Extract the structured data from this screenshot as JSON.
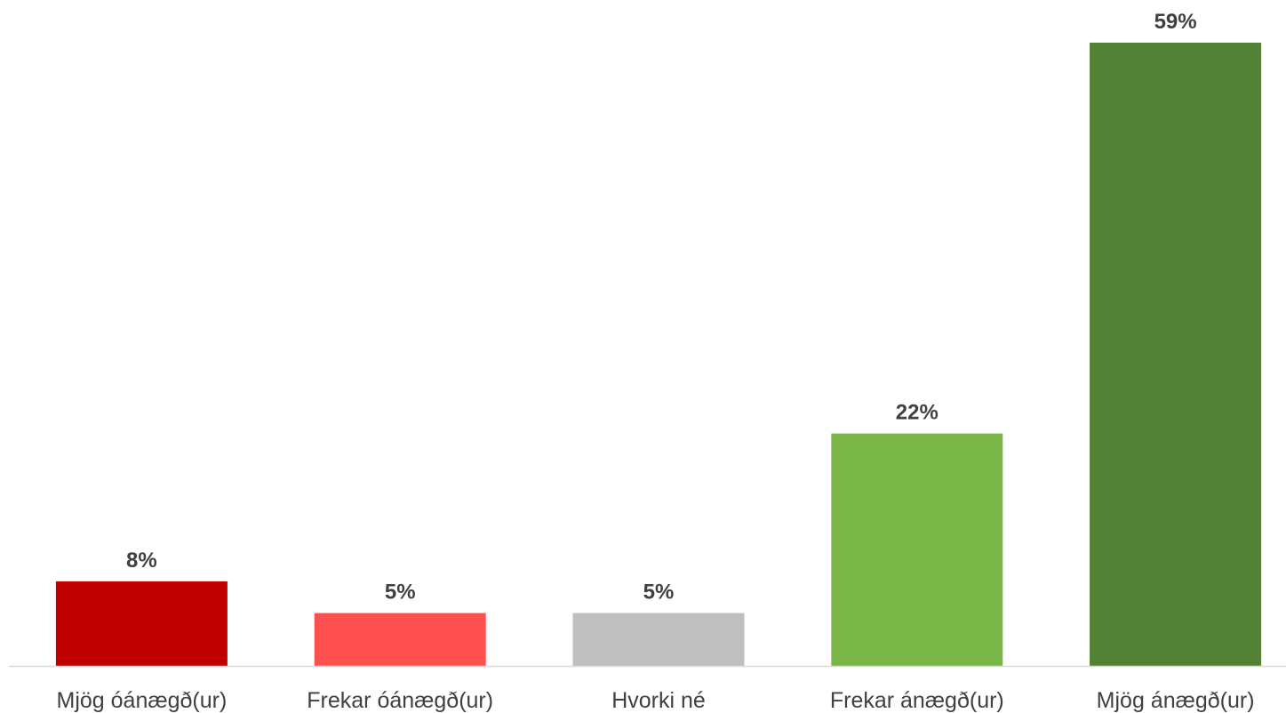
{
  "chart_data": {
    "type": "bar",
    "title": "",
    "xlabel": "",
    "ylabel": "",
    "categories": [
      "Mjög óánægð(ur)",
      "Frekar óánægð(ur)",
      "Hvorki né",
      "Frekar ánægð(ur)",
      "Mjög ánægð(ur)"
    ],
    "values": [
      8,
      5,
      5,
      22,
      59
    ],
    "value_labels": [
      "8%",
      "5%",
      "5%",
      "22%",
      "59%"
    ],
    "unit": "%",
    "colors": [
      "#c00000",
      "#ff5050",
      "#bfbfbf",
      "#7ab648",
      "#538135"
    ],
    "ylim": [
      0,
      59
    ],
    "grid": false,
    "legend": "none"
  }
}
